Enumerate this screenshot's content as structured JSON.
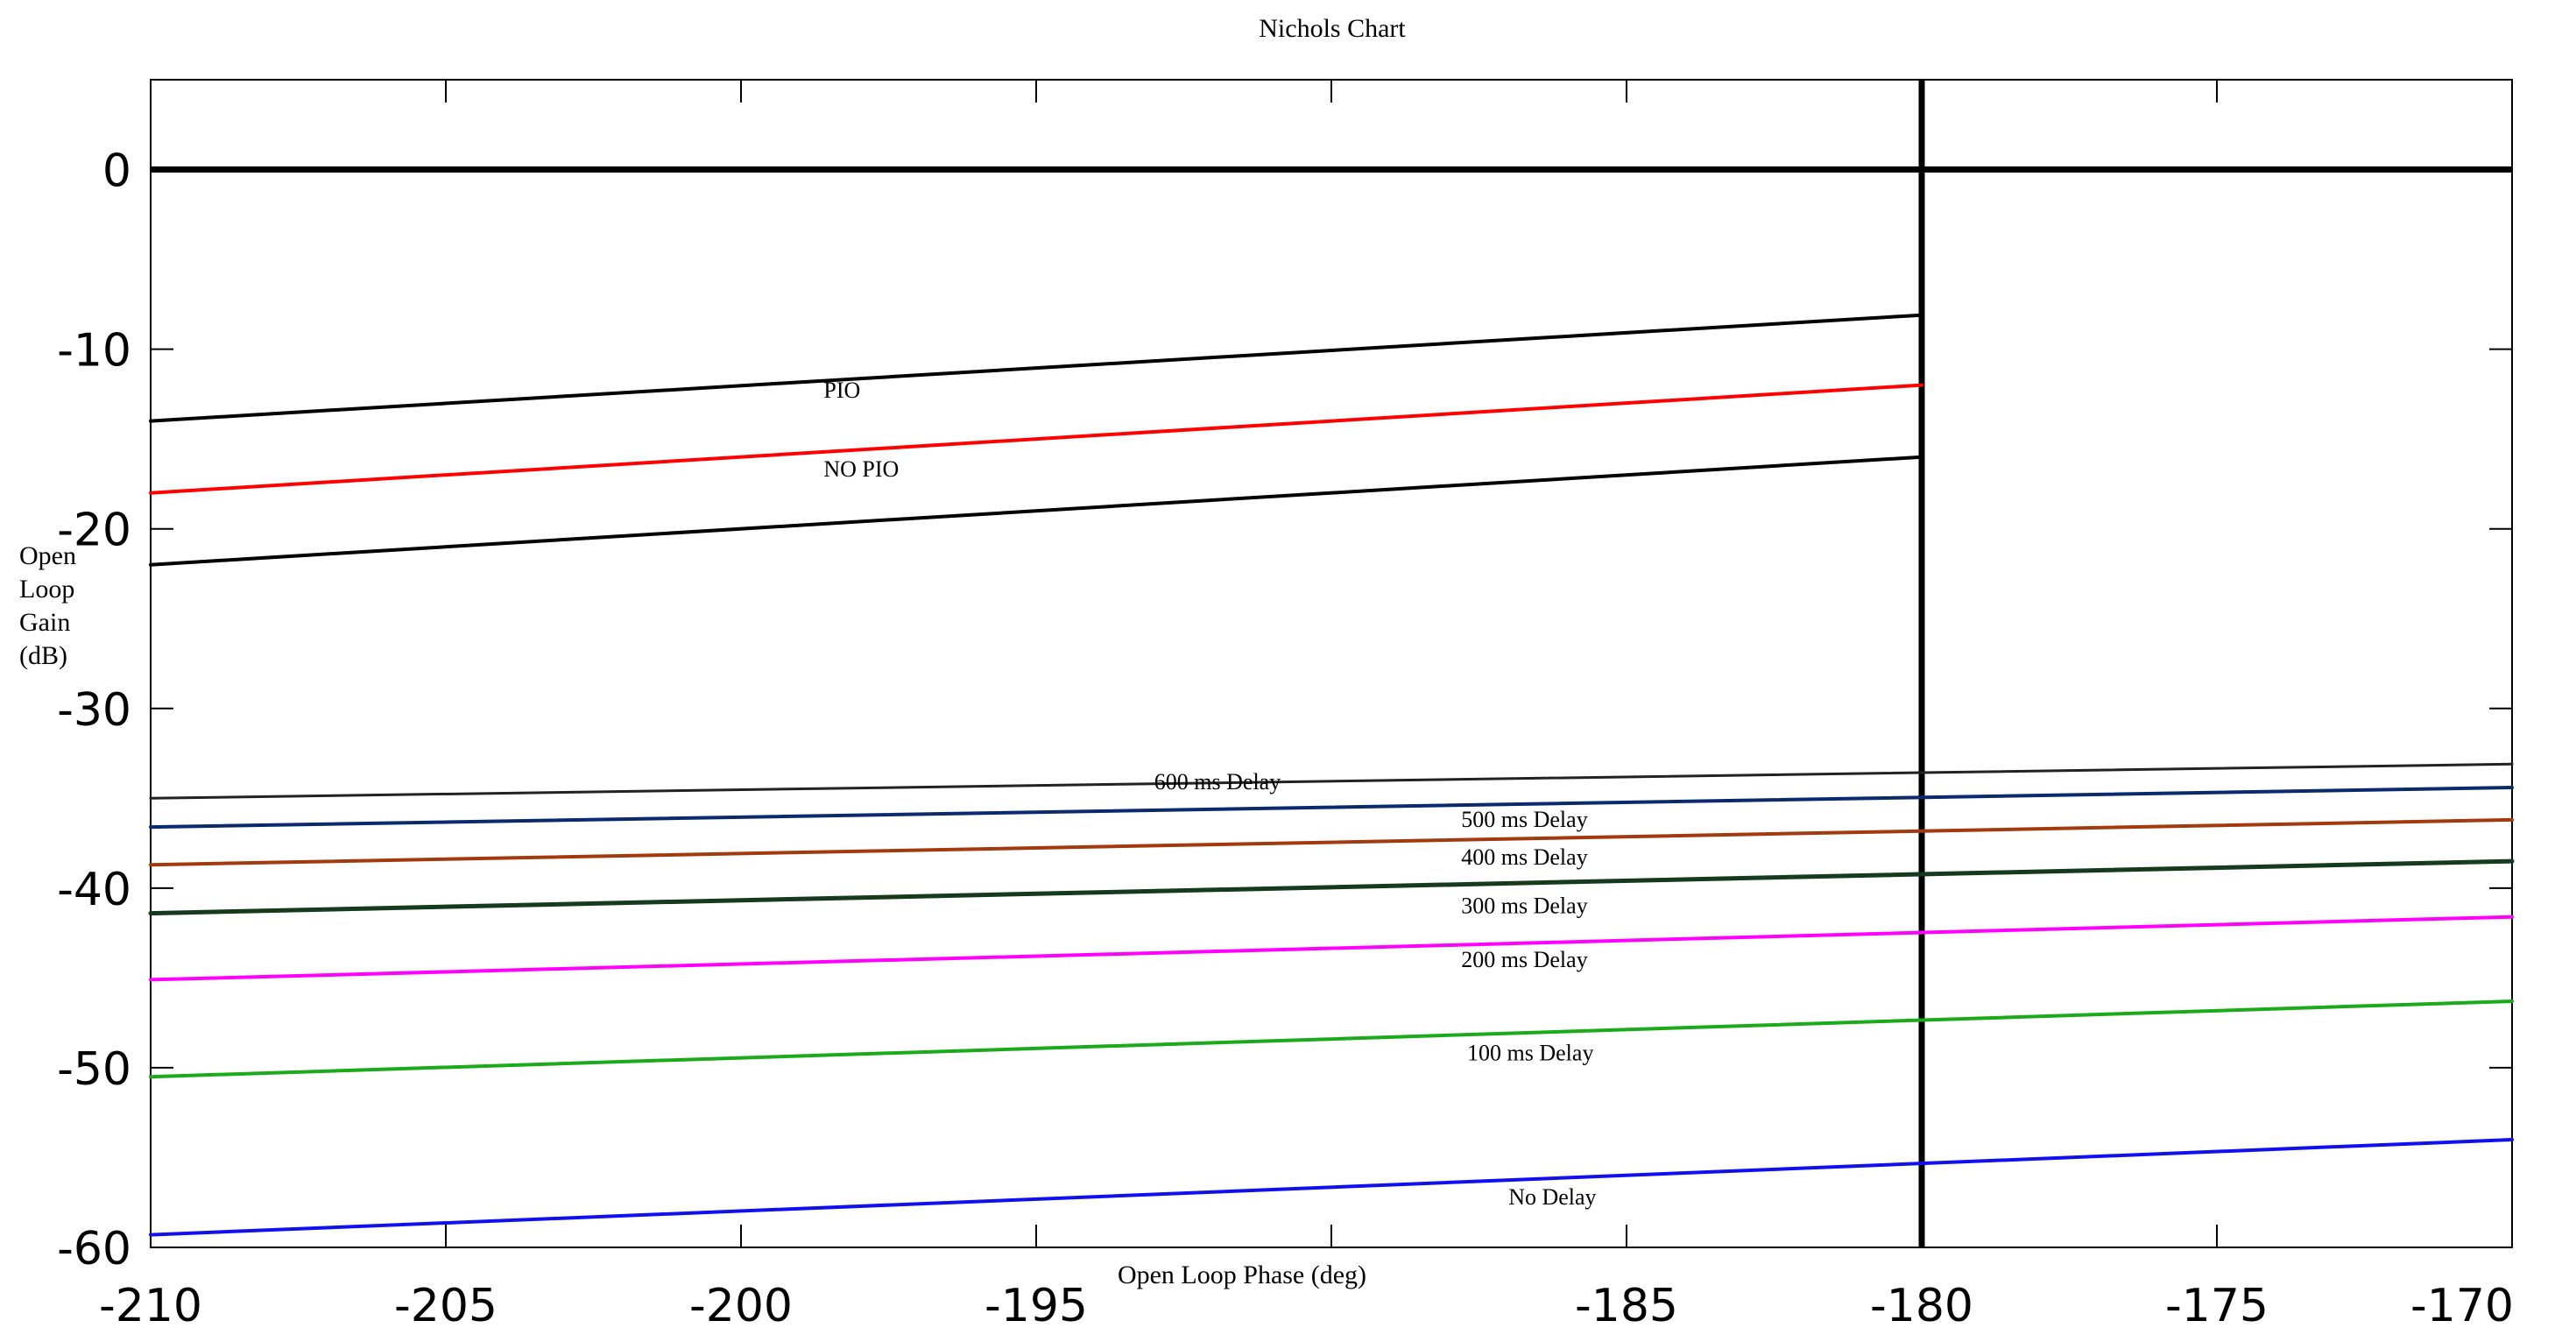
{
  "chart_data": {
    "type": "line",
    "title": "Nichols Chart",
    "xlabel": "Open Loop Phase (deg)",
    "ylabel_lines": [
      "Open",
      "Loop",
      "Gain",
      "(dB)"
    ],
    "xlim": [
      -210,
      -170
    ],
    "ylim": [
      -60,
      5
    ],
    "xticks": [
      -210,
      -205,
      -200,
      -195,
      -190,
      -185,
      -180,
      -175,
      -170
    ],
    "xtick_labels": [
      "-210",
      "-205",
      "-200",
      "-195",
      "",
      "-185",
      "-180",
      "-175",
      "-170"
    ],
    "yticks": [
      -60,
      -50,
      -40,
      -30,
      -20,
      -10,
      0
    ],
    "ytick_labels": [
      "-60",
      "-50",
      "-40",
      "-30",
      "-20",
      "-10",
      "0"
    ],
    "grid": false,
    "reference_lines": [
      {
        "name": "zero-gain-line",
        "orientation": "horizontal",
        "value": 0,
        "color": "#000000"
      },
      {
        "name": "minus-180-phase-line",
        "orientation": "vertical",
        "value": -180,
        "color": "#000000"
      }
    ],
    "series": [
      {
        "key": "pio-upper",
        "name": "",
        "color": "#000000",
        "width": 4,
        "x": [
          -210,
          -180
        ],
        "y": [
          -14.0,
          -8.1
        ]
      },
      {
        "key": "pio",
        "name": "",
        "color": "#ff0000",
        "width": 4,
        "x": [
          -210,
          -180
        ],
        "y": [
          -18.0,
          -12.0
        ]
      },
      {
        "key": "no-pio",
        "name": "",
        "color": "#000000",
        "width": 4,
        "x": [
          -210,
          -180
        ],
        "y": [
          -22.0,
          -16.0
        ]
      },
      {
        "key": "delay-600",
        "name": "600 ms Delay",
        "color": "#222222",
        "width": 3,
        "x": [
          -210,
          -170
        ],
        "y": [
          -35.0,
          -33.1
        ]
      },
      {
        "key": "delay-500",
        "name": "500 ms Delay",
        "color": "#0a2a6e",
        "width": 4,
        "x": [
          -210,
          -170
        ],
        "y": [
          -36.6,
          -34.4
        ]
      },
      {
        "key": "delay-400",
        "name": "400 ms Delay",
        "color": "#a33a0e",
        "width": 4,
        "x": [
          -210,
          -170
        ],
        "y": [
          -38.7,
          -36.2
        ]
      },
      {
        "key": "delay-300",
        "name": "300 ms Delay",
        "color": "#163a1c",
        "width": 5,
        "x": [
          -210,
          -170
        ],
        "y": [
          -41.4,
          -38.5
        ]
      },
      {
        "key": "delay-200",
        "name": "200 ms Delay",
        "color": "#ff00ff",
        "width": 4,
        "x": [
          -210,
          -170
        ],
        "y": [
          -45.1,
          -41.6
        ]
      },
      {
        "key": "delay-100",
        "name": "100 ms Delay",
        "color": "#1aaa1a",
        "width": 4,
        "x": [
          -210,
          -170
        ],
        "y": [
          -50.5,
          -46.3
        ]
      },
      {
        "key": "no-delay",
        "name": "No Delay",
        "color": "#1010ee",
        "width": 4,
        "x": [
          -210,
          -170
        ],
        "y": [
          -59.3,
          -54.0
        ]
      }
    ],
    "annotations": [
      {
        "text": "PIO",
        "x": -198.6,
        "y": -12.7,
        "name": "annotation-pio"
      },
      {
        "text": "NO PIO",
        "x": -198.6,
        "y": -17.1,
        "name": "annotation-no-pio"
      },
      {
        "text": "600 ms Delay",
        "x": -193.0,
        "y": -34.5,
        "name": "annotation-600ms"
      },
      {
        "text": "500 ms Delay",
        "x": -187.8,
        "y": -36.6,
        "name": "annotation-500ms"
      },
      {
        "text": "400 ms Delay",
        "x": -187.8,
        "y": -38.7,
        "name": "annotation-400ms"
      },
      {
        "text": "300 ms Delay",
        "x": -187.8,
        "y": -41.4,
        "name": "annotation-300ms"
      },
      {
        "text": "200 ms Delay",
        "x": -187.8,
        "y": -44.4,
        "name": "annotation-200ms"
      },
      {
        "text": "100 ms Delay",
        "x": -187.7,
        "y": -49.6,
        "name": "annotation-100ms"
      },
      {
        "text": "No Delay",
        "x": -187.0,
        "y": -57.6,
        "name": "annotation-no-delay"
      }
    ]
  }
}
